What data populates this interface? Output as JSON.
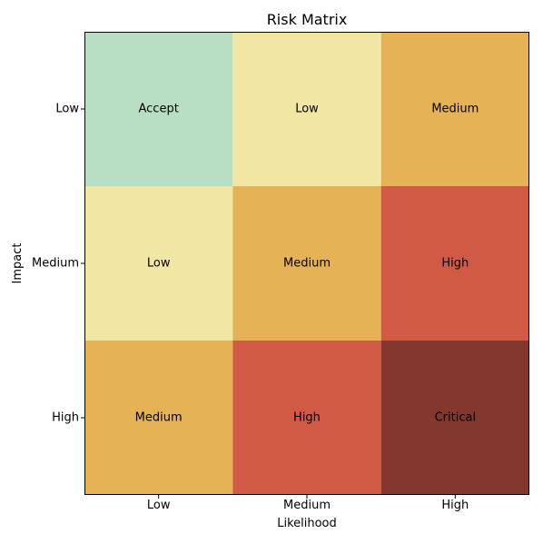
{
  "chart_data": {
    "type": "heatmap",
    "title": "Risk Matrix",
    "xlabel": "Likelihood",
    "ylabel": "Impact",
    "x_categories": [
      "Low",
      "Medium",
      "High"
    ],
    "y_categories": [
      "Low",
      "Medium",
      "High"
    ],
    "cells": [
      [
        {
          "label": "Accept",
          "color": "#b8dfc3"
        },
        {
          "label": "Low",
          "color": "#f2e6a5"
        },
        {
          "label": "Medium",
          "color": "#e5b356"
        }
      ],
      [
        {
          "label": "Low",
          "color": "#f2e6a5"
        },
        {
          "label": "Medium",
          "color": "#e5b356"
        },
        {
          "label": "High",
          "color": "#d05a44"
        }
      ],
      [
        {
          "label": "Medium",
          "color": "#e5b356"
        },
        {
          "label": "High",
          "color": "#d05a44"
        },
        {
          "label": "Critical",
          "color": "#84372c"
        }
      ]
    ],
    "grid": false,
    "legend": "none"
  }
}
